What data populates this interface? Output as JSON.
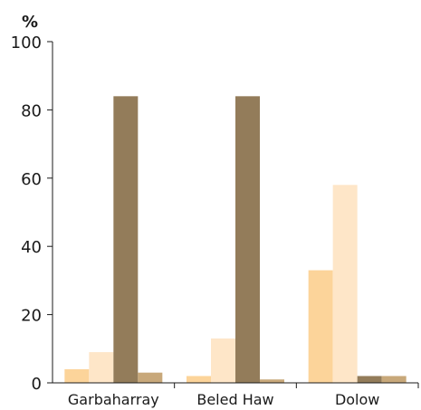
{
  "chart_data": {
    "type": "bar",
    "unit_label": "%",
    "categories": [
      "Garbaharray",
      "Beled Haw",
      "Dolow"
    ],
    "series": [
      {
        "values": [
          4,
          2,
          33
        ],
        "color": "#fcd49a"
      },
      {
        "values": [
          9,
          13,
          58
        ],
        "color": "#fee6c8"
      },
      {
        "values": [
          84,
          84,
          2
        ],
        "color": "#937c5a"
      },
      {
        "values": [
          3,
          1,
          2
        ],
        "color": "#c8a87a"
      }
    ],
    "ylim": [
      0,
      100
    ],
    "yticks": [
      "0",
      "20",
      "40",
      "60",
      "80",
      "100"
    ],
    "grid": false,
    "legend": "none"
  }
}
